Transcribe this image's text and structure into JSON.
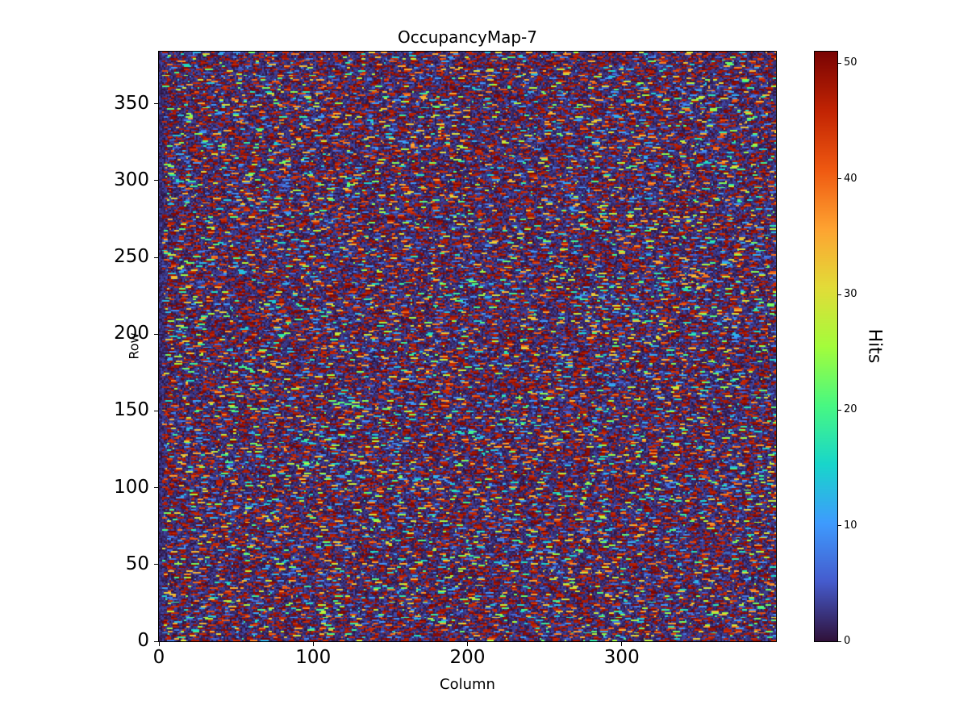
{
  "figure": {
    "title": "OccupancyMap-7",
    "xlabel": "Column",
    "ylabel": "Row",
    "colorbar_label": "Hits"
  },
  "chart_data": {
    "type": "heatmap",
    "title": "OccupancyMap-7",
    "xlabel": "Column",
    "ylabel": "Row",
    "colorbar_label": "Hits",
    "grid_cols": 400,
    "grid_rows": 384,
    "x_range": [
      0,
      400
    ],
    "y_range": [
      0,
      384
    ],
    "value_range": [
      0,
      51
    ],
    "x_ticks": [
      0,
      100,
      200,
      300
    ],
    "y_ticks": [
      0,
      50,
      100,
      150,
      200,
      250,
      300,
      350
    ],
    "colorbar_ticks": [
      0,
      10,
      20,
      30,
      40,
      50
    ],
    "colormap": "turbo",
    "grid": false,
    "legend": false,
    "background_color": "#ffffff",
    "content_description": "Dense random occupancy map: dark navy low-hit background with short horizontal streaks, mostly dark-red/red high values near 45-51 plus scattered cyan, green, yellow and orange mid-value streaks",
    "seed": 7
  }
}
